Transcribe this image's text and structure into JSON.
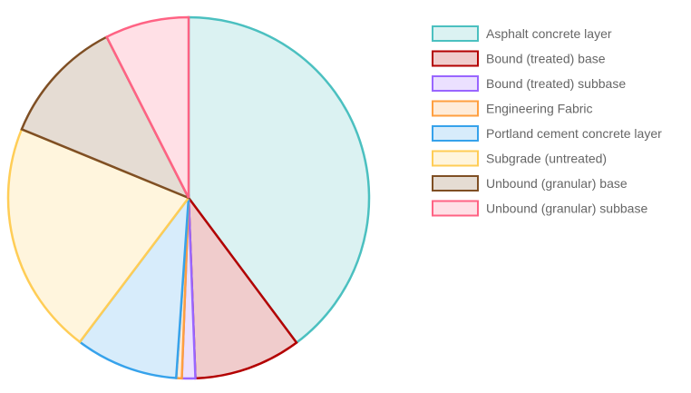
{
  "chart_data": {
    "type": "pie",
    "categories": [
      "Asphalt concrete layer",
      "Bound (treated) base",
      "Bound (treated) subbase",
      "Engineering Fabric",
      "Portland cement concrete layer",
      "Subgrade (untreated)",
      "Unbound (granular) base",
      "Unbound (granular) subbase"
    ],
    "values": [
      39.8,
      9.6,
      1.2,
      0.5,
      9.2,
      20.9,
      11.3,
      7.5
    ],
    "colors": {
      "borders": [
        "#4bc0c0",
        "#b30000",
        "#9966ff",
        "#ff9f40",
        "#36a2eb",
        "#ffcd56",
        "#7f4f24",
        "#ff6384"
      ],
      "fills": [
        "#dbf2f2",
        "#f0cccc",
        "#ebe0ff",
        "#ffecd9",
        "#d7ecfb",
        "#fff5dd",
        "#e5dcd3",
        "#ffe0e6"
      ]
    },
    "legend_position": "right",
    "title": ""
  }
}
